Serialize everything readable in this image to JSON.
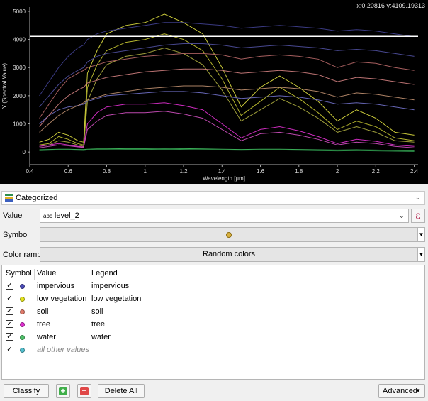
{
  "plot": {
    "coordinate_readout": "x:0.20816 y:4109.19313",
    "x_label": "Wavelength [µm]",
    "y_label": "Y (Spectral Value)",
    "x_ticks": [
      "0.4",
      "0.6",
      "0.8",
      "1",
      "1.2",
      "1.4",
      "1.6",
      "1.8",
      "2",
      "2.2",
      "2.4"
    ],
    "y_ticks": [
      "0",
      "1000",
      "2000",
      "3000",
      "4000",
      "5000"
    ],
    "crosshair_y": 4109.19
  },
  "chart_data": {
    "type": "line",
    "xlabel": "Wavelength [µm]",
    "ylabel": "Y (Spectral Value)",
    "xlim": [
      0.4,
      2.42
    ],
    "ylim": [
      -450,
      5150
    ],
    "x": [
      0.45,
      0.5,
      0.55,
      0.6,
      0.65,
      0.68,
      0.7,
      0.75,
      0.8,
      0.9,
      1.0,
      1.1,
      1.2,
      1.3,
      1.4,
      1.5,
      1.6,
      1.7,
      1.8,
      1.9,
      2.0,
      2.1,
      2.2,
      2.3,
      2.4
    ],
    "series": [
      {
        "color": "#e0e040",
        "values": [
          350,
          450,
          700,
          600,
          400,
          350,
          2800,
          3600,
          4200,
          4500,
          4600,
          4900,
          4600,
          4200,
          3000,
          1600,
          2300,
          2700,
          2300,
          1800,
          1100,
          1500,
          1200,
          700,
          600
        ]
      },
      {
        "color": "#c8c832",
        "values": [
          250,
          300,
          550,
          450,
          300,
          250,
          2300,
          3100,
          3600,
          3900,
          4000,
          4200,
          4000,
          3600,
          2600,
          1300,
          1800,
          2300,
          1900,
          1400,
          800,
          1100,
          900,
          500,
          400
        ]
      },
      {
        "color": "#b0b040",
        "values": [
          200,
          250,
          400,
          350,
          250,
          200,
          1800,
          2600,
          3100,
          3400,
          3500,
          3700,
          3500,
          3100,
          2200,
          1100,
          1500,
          1900,
          1600,
          1200,
          700,
          900,
          700,
          400,
          350
        ]
      },
      {
        "color": "#e030d0",
        "values": [
          200,
          250,
          300,
          250,
          200,
          180,
          1000,
          1400,
          1600,
          1700,
          1700,
          1750,
          1650,
          1500,
          1000,
          500,
          800,
          900,
          750,
          550,
          300,
          450,
          380,
          250,
          200
        ]
      },
      {
        "color": "#d050c0",
        "values": [
          150,
          200,
          250,
          220,
          180,
          160,
          800,
          1100,
          1300,
          1400,
          1400,
          1450,
          1350,
          1200,
          800,
          400,
          650,
          700,
          600,
          450,
          250,
          350,
          300,
          200,
          150
        ]
      },
      {
        "color": "#7070c8",
        "values": [
          1000,
          1300,
          1500,
          1600,
          1650,
          1700,
          1800,
          1900,
          2000,
          2050,
          2100,
          2150,
          2150,
          2100,
          2000,
          1900,
          1950,
          2000,
          1950,
          1850,
          1700,
          1750,
          1700,
          1600,
          1500
        ]
      },
      {
        "color": "#5050a0",
        "values": [
          1600,
          2000,
          2400,
          2700,
          2900,
          3000,
          3200,
          3400,
          3500,
          3600,
          3700,
          3800,
          3850,
          3850,
          3800,
          3700,
          3750,
          3800,
          3750,
          3700,
          3600,
          3650,
          3600,
          3500,
          3400
        ]
      },
      {
        "color": "#404090",
        "values": [
          2000,
          2500,
          3000,
          3400,
          3700,
          3800,
          4000,
          4200,
          4300,
          4400,
          4500,
          4600,
          4600,
          4550,
          4500,
          4400,
          4450,
          4500,
          4450,
          4400,
          4300,
          4350,
          4300,
          4200,
          4100
        ]
      },
      {
        "color": "#d08080",
        "values": [
          900,
          1300,
          1700,
          2000,
          2200,
          2300,
          2450,
          2550,
          2650,
          2750,
          2850,
          2900,
          2950,
          2950,
          2900,
          2800,
          2850,
          2900,
          2850,
          2750,
          2500,
          2650,
          2600,
          2500,
          2400
        ]
      },
      {
        "color": "#b86868",
        "values": [
          1200,
          1700,
          2200,
          2600,
          2800,
          2900,
          3000,
          3100,
          3200,
          3300,
          3400,
          3450,
          3500,
          3500,
          3450,
          3300,
          3400,
          3450,
          3400,
          3300,
          3000,
          3200,
          3150,
          3000,
          2900
        ]
      },
      {
        "color": "#c09070",
        "values": [
          700,
          1000,
          1300,
          1500,
          1650,
          1750,
          1850,
          1950,
          2050,
          2150,
          2250,
          2300,
          2350,
          2350,
          2300,
          2200,
          2250,
          2300,
          2250,
          2150,
          1950,
          2100,
          2050,
          1950,
          1850
        ]
      },
      {
        "color": "#40c060",
        "values": [
          80,
          90,
          100,
          100,
          90,
          85,
          100,
          110,
          110,
          120,
          120,
          130,
          120,
          110,
          100,
          90,
          100,
          100,
          90,
          80,
          70,
          80,
          70,
          60,
          50
        ]
      },
      {
        "color": "#30a050",
        "values": [
          50,
          60,
          70,
          70,
          60,
          55,
          70,
          80,
          80,
          90,
          90,
          100,
          90,
          80,
          70,
          60,
          70,
          70,
          60,
          50,
          40,
          50,
          40,
          30,
          20
        ]
      }
    ]
  },
  "renderer": {
    "label": "Categorized"
  },
  "value_row": {
    "label": "Value",
    "field_type": "abc",
    "field": "level_2",
    "expression_btn": "ε"
  },
  "symbol_row": {
    "label": "Symbol",
    "symbol_color": "#d9b13f"
  },
  "ramp_row": {
    "label": "Color ramp",
    "ramp": "Random colors"
  },
  "table": {
    "headers": [
      "Symbol",
      "Value",
      "Legend"
    ],
    "rows": [
      {
        "checked": "✓",
        "color": "#4b4bb8",
        "value": "impervious",
        "legend": "impervious",
        "italic": false
      },
      {
        "checked": "✓",
        "color": "#e4e41c",
        "value": "low vegetation",
        "legend": "low vegetation",
        "italic": false
      },
      {
        "checked": "✓",
        "color": "#e07a6a",
        "value": "soil",
        "legend": "soil",
        "italic": false
      },
      {
        "checked": "✓",
        "color": "#e02fd0",
        "value": "tree",
        "legend": "tree",
        "italic": false
      },
      {
        "checked": "✓",
        "color": "#4ec26a",
        "value": "water",
        "legend": "water",
        "italic": false
      },
      {
        "checked": "✓",
        "color": "#52c0cf",
        "value": "all other values",
        "legend": "",
        "italic": true
      }
    ]
  },
  "toolbar": {
    "classify": "Classify",
    "add_symbol": "+",
    "remove_symbol": "−",
    "delete_all": "Delete All",
    "advanced": "Advanced"
  }
}
